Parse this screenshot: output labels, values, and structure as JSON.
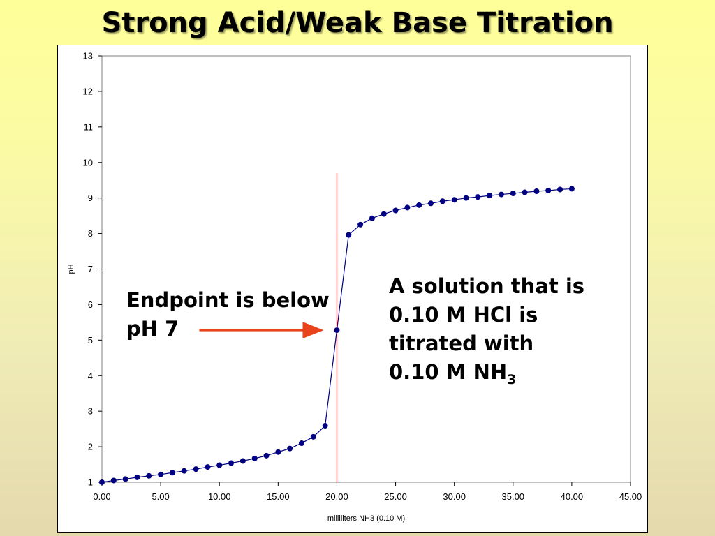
{
  "slide": {
    "title": "Strong Acid/Weak Base Titration"
  },
  "annotations": {
    "endpoint": {
      "line1": "Endpoint is below",
      "line2": "pH 7"
    },
    "solution": {
      "line1": "A solution that is",
      "line2": "0.10 M HCl is",
      "line3": "titrated with",
      "line4_main": "0.10 M NH",
      "line4_sub": "3"
    }
  },
  "colors": {
    "series": "#000080",
    "equivalence_line": "#ff0000",
    "arrow": "#e8431a",
    "background_top": "#ffff99",
    "background_bottom": "#e4d9ad"
  },
  "chart_data": {
    "type": "scatter",
    "title": "",
    "xlabel": "milliliters NH3 (0.10 M)",
    "ylabel": "pH",
    "xlim": [
      0,
      45
    ],
    "ylim": [
      1,
      13
    ],
    "x_ticks": [
      "0.00",
      "5.00",
      "10.00",
      "15.00",
      "20.00",
      "25.00",
      "30.00",
      "35.00",
      "40.00",
      "45.00"
    ],
    "y_ticks": [
      "1",
      "2",
      "3",
      "4",
      "5",
      "6",
      "7",
      "8",
      "9",
      "10",
      "11",
      "12",
      "13"
    ],
    "grid": false,
    "legend": false,
    "connected_with_line": true,
    "equivalence_x": 20,
    "equivalence_line_top_y": 9.7,
    "arrow_target": {
      "x": 20,
      "y": 5.28
    },
    "series": [
      {
        "x": [
          0,
          1,
          2,
          3,
          4,
          5,
          6,
          7,
          8,
          9,
          10,
          11,
          12,
          13,
          14,
          15,
          16,
          17,
          18,
          19,
          20,
          21,
          22,
          23,
          24,
          25,
          26,
          27,
          28,
          29,
          30,
          31,
          32,
          33,
          34,
          35,
          36,
          37,
          38,
          39,
          40
        ],
        "y": [
          1.0,
          1.05,
          1.09,
          1.14,
          1.18,
          1.22,
          1.27,
          1.32,
          1.37,
          1.43,
          1.48,
          1.54,
          1.6,
          1.67,
          1.75,
          1.85,
          1.95,
          2.1,
          2.28,
          2.59,
          5.28,
          7.96,
          8.25,
          8.43,
          8.55,
          8.65,
          8.73,
          8.8,
          8.85,
          8.91,
          8.95,
          9.0,
          9.03,
          9.07,
          9.1,
          9.13,
          9.16,
          9.19,
          9.21,
          9.24,
          9.26
        ]
      }
    ]
  }
}
